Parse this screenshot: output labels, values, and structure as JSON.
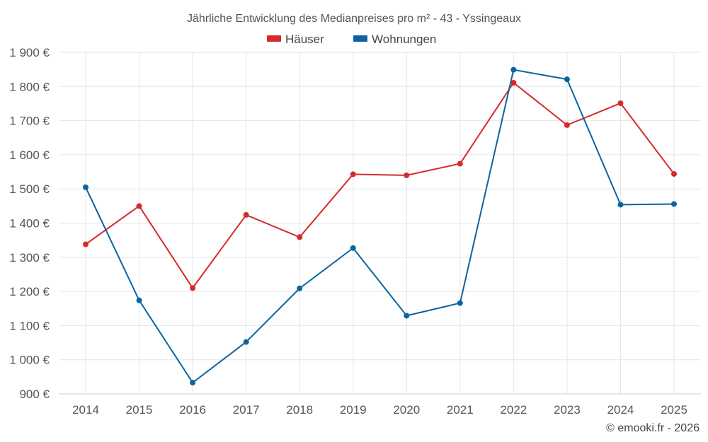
{
  "chart_data": {
    "type": "line",
    "title": "Jährliche Entwicklung des Medianpreises pro m² - 43 - Yssingeaux",
    "categories": [
      "2014",
      "2015",
      "2016",
      "2017",
      "2018",
      "2019",
      "2020",
      "2021",
      "2022",
      "2023",
      "2024",
      "2025"
    ],
    "series": [
      {
        "name": "Häuser",
        "color": "#d62a2a",
        "values": [
          1338,
          1450,
          1210,
          1424,
          1359,
          1543,
          1540,
          1574,
          1811,
          1687,
          1751,
          1544
        ]
      },
      {
        "name": "Wohnungen",
        "color": "#0b64a0",
        "values": [
          1505,
          1174,
          933,
          1052,
          1209,
          1327,
          1129,
          1166,
          1849,
          1821,
          1454,
          1456
        ]
      }
    ],
    "ylim": [
      900,
      1900
    ],
    "yticks": [
      900,
      1000,
      1100,
      1200,
      1300,
      1400,
      1500,
      1600,
      1700,
      1800,
      1900
    ],
    "ytick_labels": [
      "900 €",
      "1 000 €",
      "1 100 €",
      "1 200 €",
      "1 300 €",
      "1 400 €",
      "1 500 €",
      "1 600 €",
      "1 700 €",
      "1 800 €",
      "1 900 €"
    ],
    "grid": true,
    "legend": "top-center"
  },
  "credit": "© emooki.fr - 2026"
}
